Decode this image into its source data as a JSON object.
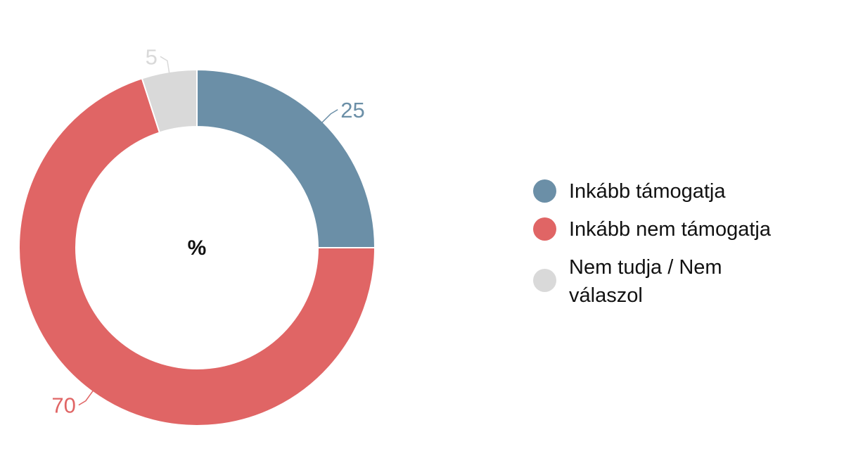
{
  "chart_data": {
    "type": "pie",
    "donut": true,
    "center_label": "%",
    "slices": [
      {
        "name": "Inkább támogatja",
        "value": 25,
        "color": "#6b8fa7"
      },
      {
        "name": "Inkább nem támogatja",
        "value": 70,
        "color": "#e06565"
      },
      {
        "name": "Nem tudja / Nem válaszol",
        "value": 5,
        "color": "#d9d9d9"
      }
    ],
    "legend_position": "right"
  }
}
